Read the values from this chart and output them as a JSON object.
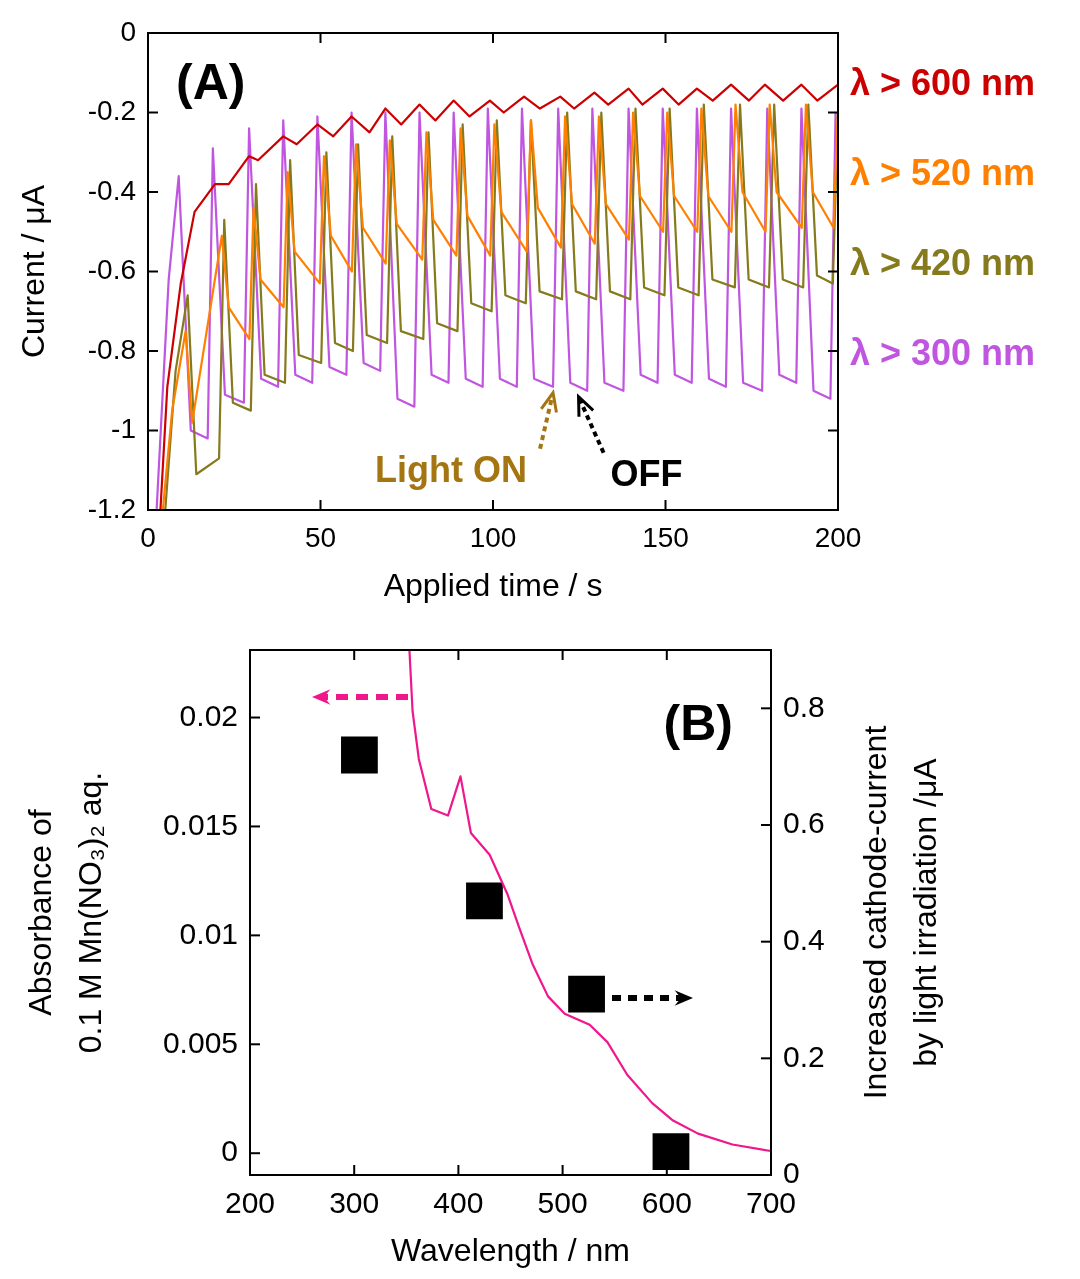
{
  "chart_data": [
    {
      "type": "line",
      "xlabel": "Applied time / s",
      "ylabel": "Current / μA",
      "xlim": [
        0,
        200
      ],
      "ylim": [
        -1.2,
        0
      ],
      "xticks": [
        0,
        50,
        100,
        150,
        200
      ],
      "yticks": [
        -1.2,
        -1,
        -0.8,
        -0.6,
        -0.4,
        -0.2,
        0
      ],
      "legend": "right",
      "annotations": [
        "(A)",
        {
          "text": "Light ON",
          "x": 117.4,
          "y": -0.89
        },
        {
          "text": "OFF",
          "x": 124.8,
          "y": -0.9
        }
      ],
      "series": [
        {
          "name": "λ > 600 nm",
          "color": "#cc0000",
          "x": [
            3.6,
            5.6,
            9.5,
            13.5,
            19.4,
            23.4,
            29.3,
            31.9,
            39.2,
            43.1,
            49.1,
            53.7,
            59.0,
            64.2,
            68.8,
            73.4,
            78.7,
            83.3,
            88.6,
            93.2,
            99.1,
            103.1,
            109.0,
            113.6,
            119.5,
            123.5,
            129.4,
            133.4,
            139.3,
            143.3,
            149.2,
            153.8,
            159.1,
            163.7,
            169.0,
            174.2,
            178.8,
            184.1,
            189.4,
            194.0,
            200
          ],
          "values": [
            -1.2,
            -0.89,
            -0.63,
            -0.45,
            -0.38,
            -0.38,
            -0.31,
            -0.32,
            -0.26,
            -0.28,
            -0.23,
            -0.26,
            -0.21,
            -0.25,
            -0.19,
            -0.23,
            -0.18,
            -0.22,
            -0.17,
            -0.21,
            -0.17,
            -0.2,
            -0.16,
            -0.19,
            -0.16,
            -0.19,
            -0.15,
            -0.18,
            -0.14,
            -0.18,
            -0.14,
            -0.18,
            -0.14,
            -0.17,
            -0.13,
            -0.17,
            -0.13,
            -0.17,
            -0.13,
            -0.17,
            -0.13
          ]
        },
        {
          "name": "λ > 520 nm",
          "color": "#ff8000",
          "x": [
            4.3,
            7,
            10.9,
            12.8,
            21.4,
            23.4,
            29.4,
            30.6,
            32.6,
            39.3,
            40.5,
            42.5,
            49.8,
            51.0,
            53.0,
            59.1,
            60.3,
            62.3,
            68.9,
            70.1,
            72.1,
            79.5,
            80.7,
            82.7,
            89.4,
            90.6,
            92.6,
            99.2,
            100.4,
            102.4,
            109.8,
            111.0,
            113.0,
            119.7,
            120.9,
            122.9,
            129.5,
            130.7,
            132.7,
            139.4,
            140.6,
            142.6,
            149.3,
            150.5,
            152.5,
            159.2,
            160.4,
            162.4,
            169.1,
            170.3,
            172.3,
            179.0,
            180.2,
            182.2,
            189.5,
            190.7,
            192.7,
            198.7,
            199.9
          ],
          "values": [
            -1.2,
            -0.95,
            -0.75,
            -0.98,
            -0.51,
            -0.69,
            -0.77,
            -0.44,
            -0.62,
            -0.69,
            -0.35,
            -0.55,
            -0.63,
            -0.31,
            -0.51,
            -0.6,
            -0.28,
            -0.49,
            -0.58,
            -0.27,
            -0.48,
            -0.57,
            -0.25,
            -0.47,
            -0.56,
            -0.24,
            -0.46,
            -0.56,
            -0.23,
            -0.45,
            -0.55,
            -0.22,
            -0.44,
            -0.54,
            -0.21,
            -0.43,
            -0.53,
            -0.21,
            -0.43,
            -0.52,
            -0.2,
            -0.41,
            -0.5,
            -0.2,
            -0.41,
            -0.5,
            -0.19,
            -0.41,
            -0.5,
            -0.18,
            -0.4,
            -0.5,
            -0.18,
            -0.4,
            -0.49,
            -0.18,
            -0.4,
            -0.49,
            -0.21
          ]
        },
        {
          "name": "λ > 420 nm",
          "color": "#857a1c",
          "x": [
            5,
            8,
            11.5,
            14.0,
            20.6,
            22.1,
            24.6,
            29.8,
            31.3,
            33.8,
            39.7,
            41.2,
            43.7,
            50.2,
            51.7,
            54.2,
            59.4,
            60.9,
            63.4,
            69.3,
            70.8,
            73.3,
            79.8,
            81.3,
            83.8,
            89.7,
            91.2,
            93.7,
            99.6,
            101.1,
            103.6,
            109.5,
            111.0,
            113.5,
            120.0,
            121.5,
            124.0,
            129.9,
            131.4,
            133.9,
            139.8,
            141.3,
            143.8,
            149.7,
            151.2,
            153.7,
            159.6,
            161.1,
            163.6,
            170.1,
            171.6,
            174.1,
            180.0,
            181.5,
            184.0,
            189.9,
            191.4,
            193.9,
            198.5,
            200
          ],
          "values": [
            -1.2,
            -0.85,
            -0.66,
            -1.11,
            -1.07,
            -0.47,
            -0.93,
            -0.95,
            -0.38,
            -0.86,
            -0.88,
            -0.32,
            -0.81,
            -0.83,
            -0.3,
            -0.78,
            -0.8,
            -0.28,
            -0.76,
            -0.78,
            -0.26,
            -0.75,
            -0.77,
            -0.25,
            -0.73,
            -0.75,
            -0.23,
            -0.68,
            -0.7,
            -0.22,
            -0.66,
            -0.68,
            -0.22,
            -0.65,
            -0.67,
            -0.2,
            -0.65,
            -0.67,
            -0.2,
            -0.65,
            -0.67,
            -0.19,
            -0.64,
            -0.66,
            -0.19,
            -0.64,
            -0.66,
            -0.18,
            -0.62,
            -0.64,
            -0.18,
            -0.62,
            -0.64,
            -0.18,
            -0.62,
            -0.64,
            -0.18,
            -0.61,
            -0.63,
            -0.2
          ]
        },
        {
          "name": "λ > 300 nm",
          "color": "#c055e0",
          "x": [
            2.5,
            4,
            6,
            8.9,
            12.4,
            17.3,
            18.8,
            22.3,
            27.8,
            29.3,
            32.8,
            37.7,
            39.2,
            42.7,
            47.6,
            49.1,
            52.6,
            57.5,
            59.0,
            62.5,
            67.3,
            68.8,
            72.3,
            77.2,
            78.7,
            82.2,
            87.1,
            88.6,
            92.1,
            97.0,
            98.5,
            102.0,
            106.9,
            108.4,
            111.9,
            117.4,
            118.9,
            122.4,
            127.3,
            128.8,
            132.3,
            137.8,
            139.3,
            142.8,
            147.7,
            149.2,
            152.7,
            157.6,
            159.1,
            162.6,
            167.5,
            169.0,
            172.5,
            178.0,
            179.5,
            183.0,
            187.9,
            189.4,
            192.9,
            197.8,
            199.3
          ],
          "values": [
            -1.2,
            -0.95,
            -0.62,
            -0.36,
            -1.0,
            -1.02,
            -0.29,
            -0.91,
            -0.93,
            -0.24,
            -0.87,
            -0.89,
            -0.22,
            -0.86,
            -0.88,
            -0.21,
            -0.84,
            -0.86,
            -0.2,
            -0.83,
            -0.85,
            -0.2,
            -0.92,
            -0.94,
            -0.2,
            -0.86,
            -0.88,
            -0.2,
            -0.87,
            -0.89,
            -0.19,
            -0.87,
            -0.89,
            -0.19,
            -0.87,
            -0.89,
            -0.19,
            -0.88,
            -0.9,
            -0.19,
            -0.88,
            -0.9,
            -0.19,
            -0.86,
            -0.88,
            -0.19,
            -0.86,
            -0.88,
            -0.19,
            -0.87,
            -0.89,
            -0.19,
            -0.88,
            -0.9,
            -0.19,
            -0.86,
            -0.88,
            -0.19,
            -0.9,
            -0.92,
            -0.2
          ]
        }
      ]
    },
    {
      "type": "line",
      "xlabel": "Wavelength / nm",
      "ylabel": "Absorbance of\n0.1 M Mn(NO₃)₂ aq.",
      "y2label": "Increased cathode-current\nby light irradiation /μA",
      "xlim": [
        200,
        700
      ],
      "ylim": [
        -0.001,
        0.0231
      ],
      "y2lim": [
        0,
        0.9
      ],
      "xticks": [
        200,
        300,
        400,
        500,
        600,
        700
      ],
      "yticks": [
        0,
        0.005,
        0.01,
        0.015,
        0.02
      ],
      "y2ticks": [
        0,
        0.2,
        0.4,
        0.6,
        0.8
      ],
      "annotations": [
        "(B)"
      ],
      "series": [
        {
          "color": "#f0168c",
          "axis": "y",
          "x": [
            353,
            356,
            362,
            374,
            390,
            402,
            412,
            430,
            447,
            458,
            471,
            486,
            502,
            526,
            543,
            562,
            586,
            606,
            630,
            663,
            700
          ],
          "values": [
            0.0231,
            0.0203,
            0.0181,
            0.0158,
            0.0155,
            0.0173,
            0.0147,
            0.0137,
            0.0119,
            0.0104,
            0.0087,
            0.0072,
            0.0064,
            0.0059,
            0.0051,
            0.0036,
            0.0023,
            0.0015,
            0.0009,
            0.0004,
            0.0001
          ]
        },
        {
          "type": "scatter",
          "color": "#000000",
          "axis": "y2",
          "marker": "square",
          "x": [
            305,
            425,
            523,
            604
          ],
          "values": [
            0.72,
            0.47,
            0.31,
            0.04
          ]
        }
      ]
    }
  ]
}
